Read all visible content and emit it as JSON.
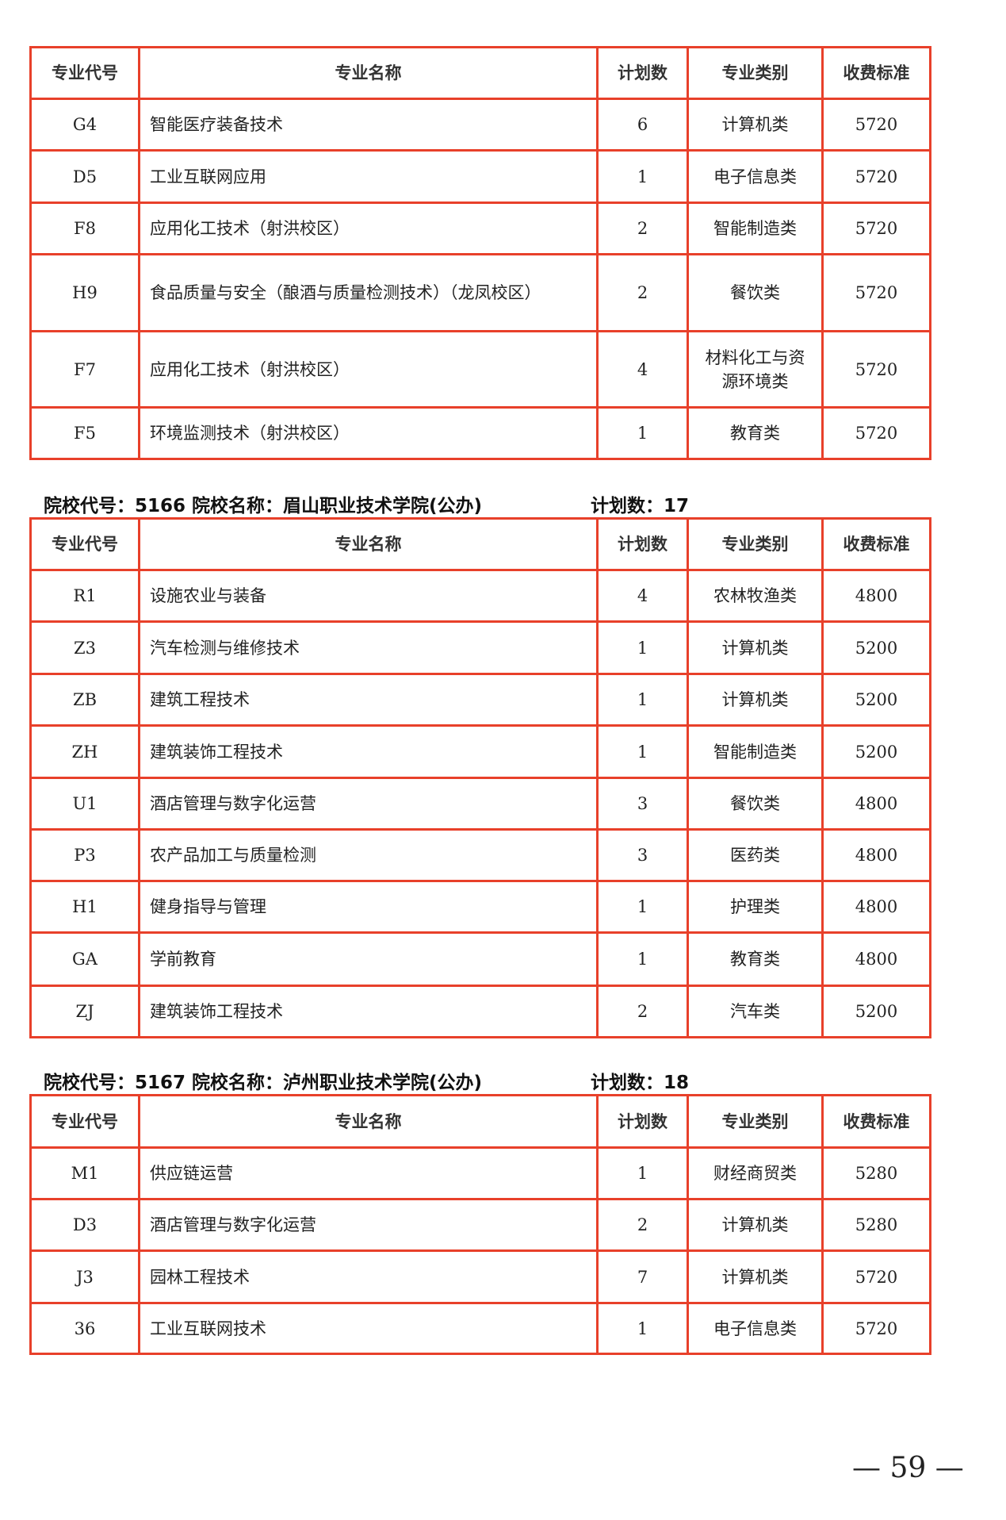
{
  "headers": [
    "专业代号",
    "专业名称",
    "计划数",
    "专业类别",
    "收费标准"
  ],
  "sections": [
    {
      "title": "",
      "plan": "",
      "rows": [
        [
          "G4",
          "智能医疗装备技术",
          "6",
          "计算机类",
          "5720"
        ],
        [
          "D5",
          "工业互联网应用",
          "1",
          "电子信息类",
          "5720"
        ],
        [
          "F8",
          "应用化工技术（射洪校区）",
          "2",
          "智能制造类",
          "5720"
        ],
        [
          "H9",
          "食品质量与安全（酿酒与质量检测技术）（龙凤校区）",
          "2",
          "餐饮类",
          "5720"
        ],
        [
          "F7",
          "应用化工技术（射洪校区）",
          "4",
          "材料化工与资源环境类",
          "5720"
        ],
        [
          "F5",
          "环境监测技术（射洪校区）",
          "1",
          "教育类",
          "5720"
        ]
      ]
    },
    {
      "title": "院校代号：5166 院校名称：眉山职业技术学院(公办)",
      "plan": "计划数：17",
      "rows": [
        [
          "R1",
          "设施农业与装备",
          "4",
          "农林牧渔类",
          "4800"
        ],
        [
          "Z3",
          "汽车检测与维修技术",
          "1",
          "计算机类",
          "5200"
        ],
        [
          "ZB",
          "建筑工程技术",
          "1",
          "计算机类",
          "5200"
        ],
        [
          "ZH",
          "建筑装饰工程技术",
          "1",
          "智能制造类",
          "5200"
        ],
        [
          "U1",
          "酒店管理与数字化运营",
          "3",
          "餐饮类",
          "4800"
        ],
        [
          "P3",
          "农产品加工与质量检测",
          "3",
          "医药类",
          "4800"
        ],
        [
          "H1",
          "健身指导与管理",
          "1",
          "护理类",
          "4800"
        ],
        [
          "GA",
          "学前教育",
          "1",
          "教育类",
          "4800"
        ],
        [
          "ZJ",
          "建筑装饰工程技术",
          "2",
          "汽车类",
          "5200"
        ]
      ]
    },
    {
      "title": "院校代号：5167 院校名称：泸州职业技术学院(公办)",
      "plan": "计划数：18",
      "rows": [
        [
          "M1",
          "供应链运营",
          "1",
          "财经商贸类",
          "5280"
        ],
        [
          "D3",
          "酒店管理与数字化运营",
          "2",
          "计算机类",
          "5280"
        ],
        [
          "J3",
          "园林工程技术",
          "7",
          "计算机类",
          "5720"
        ],
        [
          "36",
          "工业互联网技术",
          "1",
          "电子信息类",
          "5720"
        ]
      ]
    }
  ],
  "page_number": "— 59 —",
  "colors": {
    "border": "#e8402a"
  }
}
